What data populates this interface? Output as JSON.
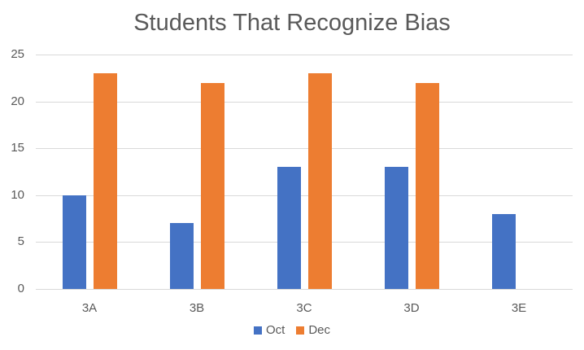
{
  "chart_data": {
    "type": "bar",
    "title": "Students That Recognize Bias",
    "xlabel": "",
    "ylabel": "",
    "categories": [
      "3A",
      "3B",
      "3C",
      "3D",
      "3E"
    ],
    "series": [
      {
        "name": "Oct",
        "color": "#4472C4",
        "values": [
          10,
          7,
          13,
          13,
          8
        ]
      },
      {
        "name": "Dec",
        "color": "#ED7D31",
        "values": [
          23,
          22,
          23,
          22,
          null
        ]
      }
    ],
    "ylim": [
      0,
      25
    ],
    "yticks": [
      "0",
      "5",
      "10",
      "15",
      "20",
      "25"
    ],
    "grid": true,
    "legend_position": "bottom"
  }
}
